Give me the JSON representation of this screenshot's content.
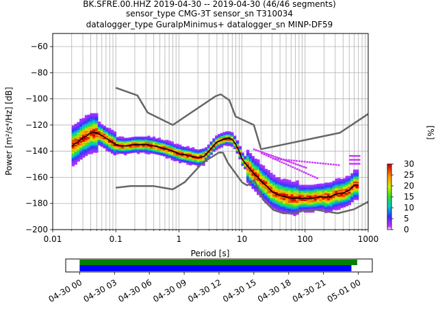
{
  "header": {
    "line1": "BK.SFRE.00.HHZ   2019-04-30 -- 2019-04-30  (46/46 segments)",
    "line2": "sensor_type CMG-3T sensor_sn T310034",
    "line3": "datalogger_type GuralpMinimus+ datalogger_sn MINP-DF59"
  },
  "colors": {
    "frame": "#000000",
    "grid": "#b0b0b0",
    "noise_model": "#666666",
    "mean_line": "#000000",
    "coverage_data": "#008000",
    "coverage_gaps": "#0000ff"
  },
  "chart_data": [
    {
      "type": "heatmap",
      "name": "probabilistic-psd",
      "xscale": "log",
      "xlim": [
        0.01,
        1000
      ],
      "ylim": [
        -200,
        -50
      ],
      "xlabel": "Period [s]",
      "ylabel": "Power [m²/s⁴/Hz] [dB]",
      "x_ticks": [
        0.01,
        0.1,
        1,
        10,
        100,
        1000
      ],
      "x_tick_labels": [
        "0.01",
        "0.1",
        "1",
        "10",
        "100",
        "1000"
      ],
      "y_ticks": [
        -200,
        -180,
        -160,
        -140,
        -120,
        -100,
        -80,
        -60
      ],
      "grid": true,
      "mean_curve": {
        "period": [
          0.02,
          0.025,
          0.03,
          0.035,
          0.04,
          0.05,
          0.06,
          0.07,
          0.08,
          0.1,
          0.12,
          0.15,
          0.2,
          0.25,
          0.3,
          0.4,
          0.5,
          0.6,
          0.8,
          1.0,
          1.3,
          1.6,
          2.0,
          2.5,
          3.0,
          3.5,
          4.0,
          5.0,
          6.0,
          7.0,
          8.0,
          9.0,
          10,
          12,
          14,
          16,
          18,
          20,
          25,
          30,
          40,
          50,
          60,
          80,
          100,
          130,
          170,
          200,
          250,
          300,
          400,
          500,
          600,
          700
        ],
        "power": [
          -136,
          -133,
          -130,
          -128,
          -126,
          -126,
          -128,
          -130,
          -132,
          -135,
          -136,
          -136,
          -135,
          -135,
          -135,
          -136,
          -137,
          -138,
          -140,
          -142,
          -143,
          -144,
          -145,
          -144,
          -140,
          -136,
          -133,
          -131,
          -130,
          -131,
          -135,
          -140,
          -146,
          -151,
          -155,
          -158,
          -160,
          -163,
          -167,
          -171,
          -174,
          -175,
          -176,
          -176,
          -176,
          -176,
          -175,
          -175,
          -175,
          -173,
          -172,
          -170,
          -166,
          -166
        ]
      },
      "noise_models": [
        {
          "period": [
            0.1,
            0.22,
            0.32,
            0.8,
            3.8,
            4.6,
            6.3,
            7.9,
            15.4,
            20,
            354.8,
            1000
          ],
          "power": [
            -91.5,
            -97.4,
            -110.5,
            -120,
            -98,
            -96.5,
            -101,
            -113.5,
            -120,
            -138.5,
            -126,
            -111.5
          ]
        },
        {
          "period": [
            0.1,
            0.17,
            0.4,
            0.8,
            1.24,
            2.4,
            4.3,
            5,
            6,
            10,
            12,
            15.6,
            21.9,
            31.6,
            45,
            70,
            101,
            154,
            328,
            600,
            1000
          ],
          "power": [
            -168,
            -166.7,
            -166.7,
            -169.2,
            -163.7,
            -148.6,
            -141.1,
            -141.1,
            -149,
            -163.8,
            -166.2,
            -162.1,
            -177.5,
            -185,
            -187.5,
            -187.5,
            -185,
            -185,
            -187.5,
            -184.4,
            -178.7
          ]
        }
      ]
    },
    {
      "type": "colorbar",
      "name": "probability-colorbar",
      "label": "[%]",
      "range": [
        0,
        30
      ],
      "ticks": [
        0,
        5,
        10,
        15,
        20,
        25,
        30
      ]
    },
    {
      "type": "timeline",
      "name": "data-coverage",
      "tick_labels": [
        "04-30 00",
        "04-30 03",
        "04-30 06",
        "04-30 09",
        "04-30 12",
        "04-30 15",
        "04-30 18",
        "04-30 21",
        "05-01 00"
      ],
      "tick_hours": [
        0,
        3,
        6,
        9,
        12,
        15,
        18,
        21,
        24
      ],
      "axis_hours": [
        -1.2,
        25.2
      ],
      "data_bar_hours": [
        0,
        23.9
      ],
      "gaps_bar_hours": [
        0,
        23.4
      ]
    }
  ]
}
